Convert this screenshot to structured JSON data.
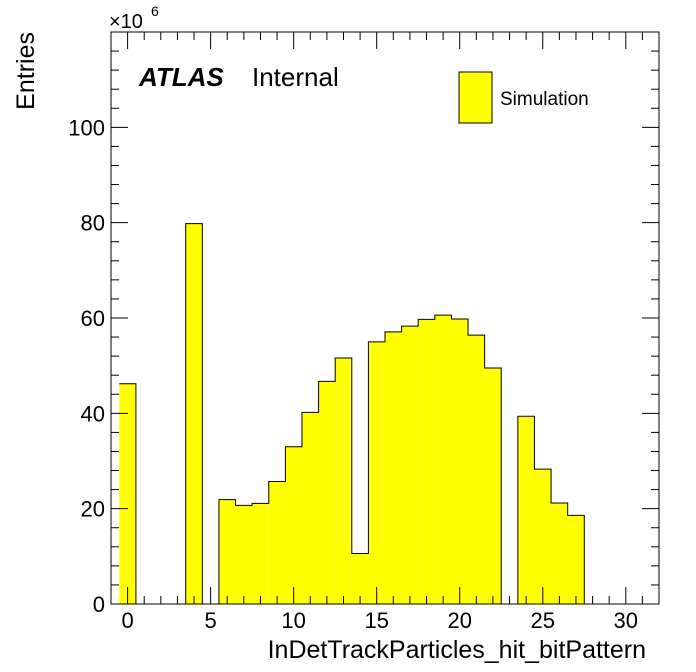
{
  "chart_data": {
    "type": "bar",
    "histogram": true,
    "xlabel": "InDetTrackParticles_hit_bitPattern",
    "ylabel": "Entries",
    "y_scale_prefix": "×10",
    "y_scale_exponent": "6",
    "xlim": [
      -1,
      32
    ],
    "ylim": [
      0,
      120
    ],
    "x_ticks": [
      0,
      5,
      10,
      15,
      20,
      25,
      30
    ],
    "y_ticks": [
      0,
      20,
      40,
      60,
      80,
      100
    ],
    "bin_width": 1,
    "bin_centers": [
      0,
      1,
      2,
      3,
      4,
      5,
      6,
      7,
      8,
      9,
      10,
      11,
      12,
      13,
      14,
      15,
      16,
      17,
      18,
      19,
      20,
      21,
      22,
      23,
      24,
      25,
      26,
      27,
      28,
      29,
      30,
      31
    ],
    "values": [
      46.2,
      0,
      0,
      0,
      79.8,
      0,
      21.9,
      20.7,
      21.1,
      25.7,
      33.0,
      40.2,
      46.7,
      51.6,
      10.6,
      55.0,
      57.1,
      58.3,
      59.7,
      60.6,
      59.8,
      56.4,
      49.5,
      0,
      39.4,
      28.3,
      21.2,
      18.6,
      0,
      0,
      0,
      0
    ],
    "fill_color": "#ffff00",
    "line_color": "#000000",
    "legend": {
      "entries": [
        "Simulation"
      ],
      "position": "top-right"
    },
    "atlas_label": "ATLAS",
    "atlas_sub": "Internal",
    "grid": false
  }
}
